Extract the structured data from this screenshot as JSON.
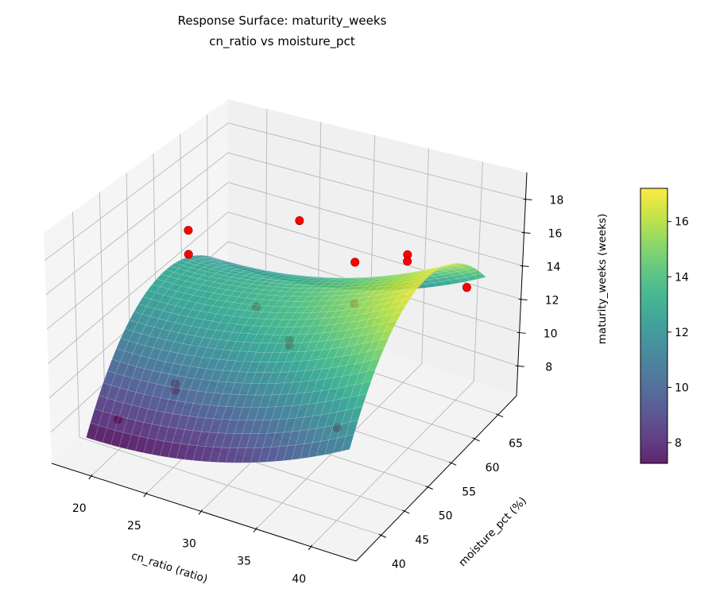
{
  "title": {
    "line1": "Response Surface: maturity_weeks",
    "line2": "cn_ratio vs moisture_pct"
  },
  "chart_data": {
    "type": "surface",
    "title": "Response Surface: maturity_weeks / cn_ratio vs moisture_pct",
    "xlabel": "cn_ratio (ratio)",
    "ylabel": "moisture_pct (%)",
    "zlabel": "maturity_weeks (weeks)",
    "xlim": [
      16.4,
      44.1
    ],
    "ylim": [
      34.6,
      68.9
    ],
    "zlim": [
      6.2,
      19.6
    ],
    "xticks": [
      20,
      25,
      30,
      35,
      40
    ],
    "yticks": [
      40,
      45,
      50,
      55,
      60,
      65
    ],
    "zticks": [
      8,
      10,
      12,
      14,
      16,
      18
    ],
    "grid": true,
    "surface": {
      "colormap": "viridis",
      "x_range": [
        18,
        42
      ],
      "y_range": [
        38,
        66
      ],
      "model": "z = a + b*c + d*c^2 + e*(y - y_peak)^2, c = (x - x_center)/x_scale",
      "coefficients": {
        "a": 13.9,
        "b": 2.05,
        "d": 1.05,
        "e": -0.0227,
        "x_center": 30,
        "x_scale": 12,
        "y_peak": 54
      }
    },
    "points": [
      {
        "x": 20,
        "y": 54,
        "z": 15.7
      },
      {
        "x": 20,
        "y": 54,
        "z": 14.2
      },
      {
        "x": 25,
        "y": 65,
        "z": 14.3
      },
      {
        "x": 30,
        "y": 65.5,
        "z": 12.5
      },
      {
        "x": 36,
        "y": 63,
        "z": 14.8
      },
      {
        "x": 36,
        "y": 63,
        "z": 14.4
      },
      {
        "x": 21,
        "y": 65,
        "z": 7.9
      },
      {
        "x": 30,
        "y": 65.5,
        "z": 9.9
      },
      {
        "x": 30,
        "y": 52.5,
        "z": 11.3
      },
      {
        "x": 30,
        "y": 52.5,
        "z": 11.0
      },
      {
        "x": 22,
        "y": 47,
        "z": 8.6
      },
      {
        "x": 22,
        "y": 47,
        "z": 8.2
      },
      {
        "x": 20,
        "y": 40,
        "z": 8.0
      },
      {
        "x": 40,
        "y": 40,
        "z": 11.5
      },
      {
        "x": 42,
        "y": 62,
        "z": 14.2
      }
    ],
    "point_color": "#ff0000",
    "colorbar": {
      "min": 7.25,
      "max": 17.2,
      "ticks": [
        8,
        10,
        12,
        14,
        16
      ],
      "colormap": "viridis"
    }
  }
}
